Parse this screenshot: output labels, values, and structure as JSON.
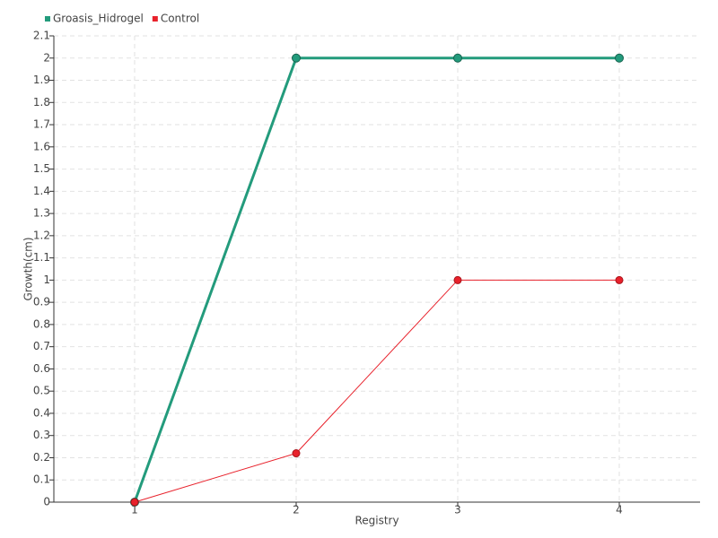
{
  "chart_data": {
    "type": "line",
    "categories": [
      "1",
      "2",
      "3",
      "4"
    ],
    "series": [
      {
        "name": "Groasis_Hidrogel",
        "color": "#239b7c",
        "values": [
          0,
          2,
          2,
          2
        ]
      },
      {
        "name": "Control",
        "color": "#e8212b",
        "values": [
          0,
          0.22,
          1,
          1
        ]
      }
    ],
    "x_label": "Registry",
    "y_label": "Growth(cm)",
    "ylim": [
      0,
      2.1
    ],
    "yticks": [
      0,
      0.1,
      0.2,
      0.3,
      0.4,
      0.5,
      0.6,
      0.7,
      0.8,
      0.9,
      1,
      1.1,
      1.2,
      1.3,
      1.4,
      1.5,
      1.6,
      1.7,
      1.8,
      1.9,
      2,
      2.1
    ],
    "grid": true,
    "legend": "top-left"
  }
}
